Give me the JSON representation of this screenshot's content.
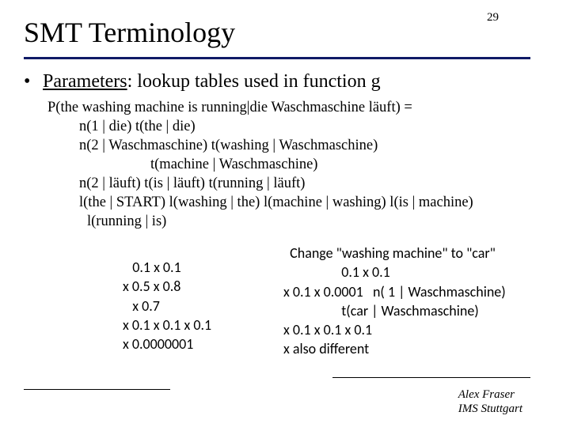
{
  "page_number": "29",
  "title": "SMT Terminology",
  "bullet": {
    "term": "Parameters",
    "rest": ": lookup tables used in function g"
  },
  "formula": {
    "lines": [
      {
        "indent": "l0",
        "text": "P(the washing machine is running|die Waschmaschine läuft) ="
      },
      {
        "indent": "l1",
        "text": "n(1 | die) t(the | die)"
      },
      {
        "indent": "l1",
        "text": "n(2 | Waschmaschine)  t(washing | Waschmaschine)"
      },
      {
        "indent": "l2",
        "text": "t(machine | Waschmaschine)"
      },
      {
        "indent": "l1",
        "text": "n(2 | läuft) t(is | läuft) t(running | läuft)"
      },
      {
        "indent": "l1",
        "text": "l(the | START) l(washing | the) l(machine | washing) l(is | machine)"
      },
      {
        "indent": "l1b",
        "text": "l(running | is)"
      }
    ]
  },
  "left_calc": {
    "lines": [
      "   0.1 x 0.1",
      "x 0.5 x 0.8",
      "   x 0.7",
      "x 0.1 x 0.1 x 0.1",
      "x 0.0000001"
    ]
  },
  "right_calc": {
    "lines": [
      "  Change \"washing machine\" to \"car\"",
      "                  0.1 x 0.1",
      "x 0.1 x 0.0001   n( 1 | Waschmaschine)",
      "                  t(car | Waschmaschine)",
      "x 0.1 x 0.1 x 0.1",
      "x also different"
    ]
  },
  "footer": {
    "name": "Alex Fraser",
    "affiliation": "IMS Stuttgart"
  },
  "colors": {
    "rule": "#0f1a66",
    "text": "#000000",
    "background": "#ffffff"
  }
}
